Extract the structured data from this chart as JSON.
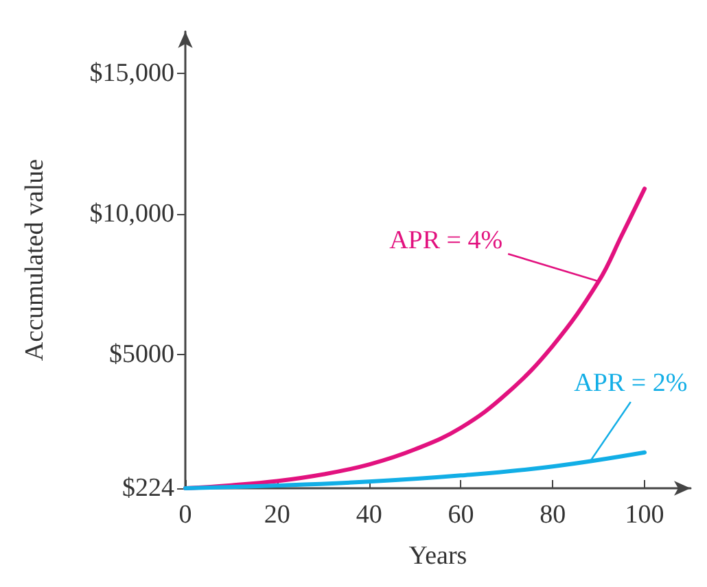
{
  "chart_data": {
    "type": "line",
    "xlabel": "Years",
    "ylabel": "Accumulated value",
    "x": [
      0,
      10,
      20,
      30,
      40,
      50,
      60,
      70,
      80,
      90,
      95,
      100
    ],
    "series": [
      {
        "color": "#e2127f",
        "values": [
          224,
          330,
          480,
          720,
          1071,
          1610,
          2380,
          3600,
          5300,
          7600,
          9230,
          10900
        ]
      },
      {
        "color": "#12aee6",
        "x": [
          0,
          20,
          40,
          60,
          80,
          100
        ],
        "values": [
          224,
          320,
          460,
          680,
          1000,
          1500
        ]
      }
    ],
    "xlim": [
      0,
      110
    ],
    "xticks": [
      0,
      20,
      40,
      60,
      80,
      100
    ],
    "ylim": [
      224,
      16500
    ],
    "yticks": [
      {
        "value": 224,
        "label": "$224"
      },
      {
        "value": 5000,
        "label": "$5000"
      },
      {
        "value": 10000,
        "label": "$10,000"
      },
      {
        "value": 15000,
        "label": "$15,000"
      }
    ],
    "annotations": [
      {
        "text": "APR = 4%",
        "x": 90,
        "y": 7600
      },
      {
        "text": "APR = 2%",
        "x": 88,
        "y": 1150
      }
    ],
    "grid": false,
    "marker": "none",
    "line_style": "solid"
  }
}
